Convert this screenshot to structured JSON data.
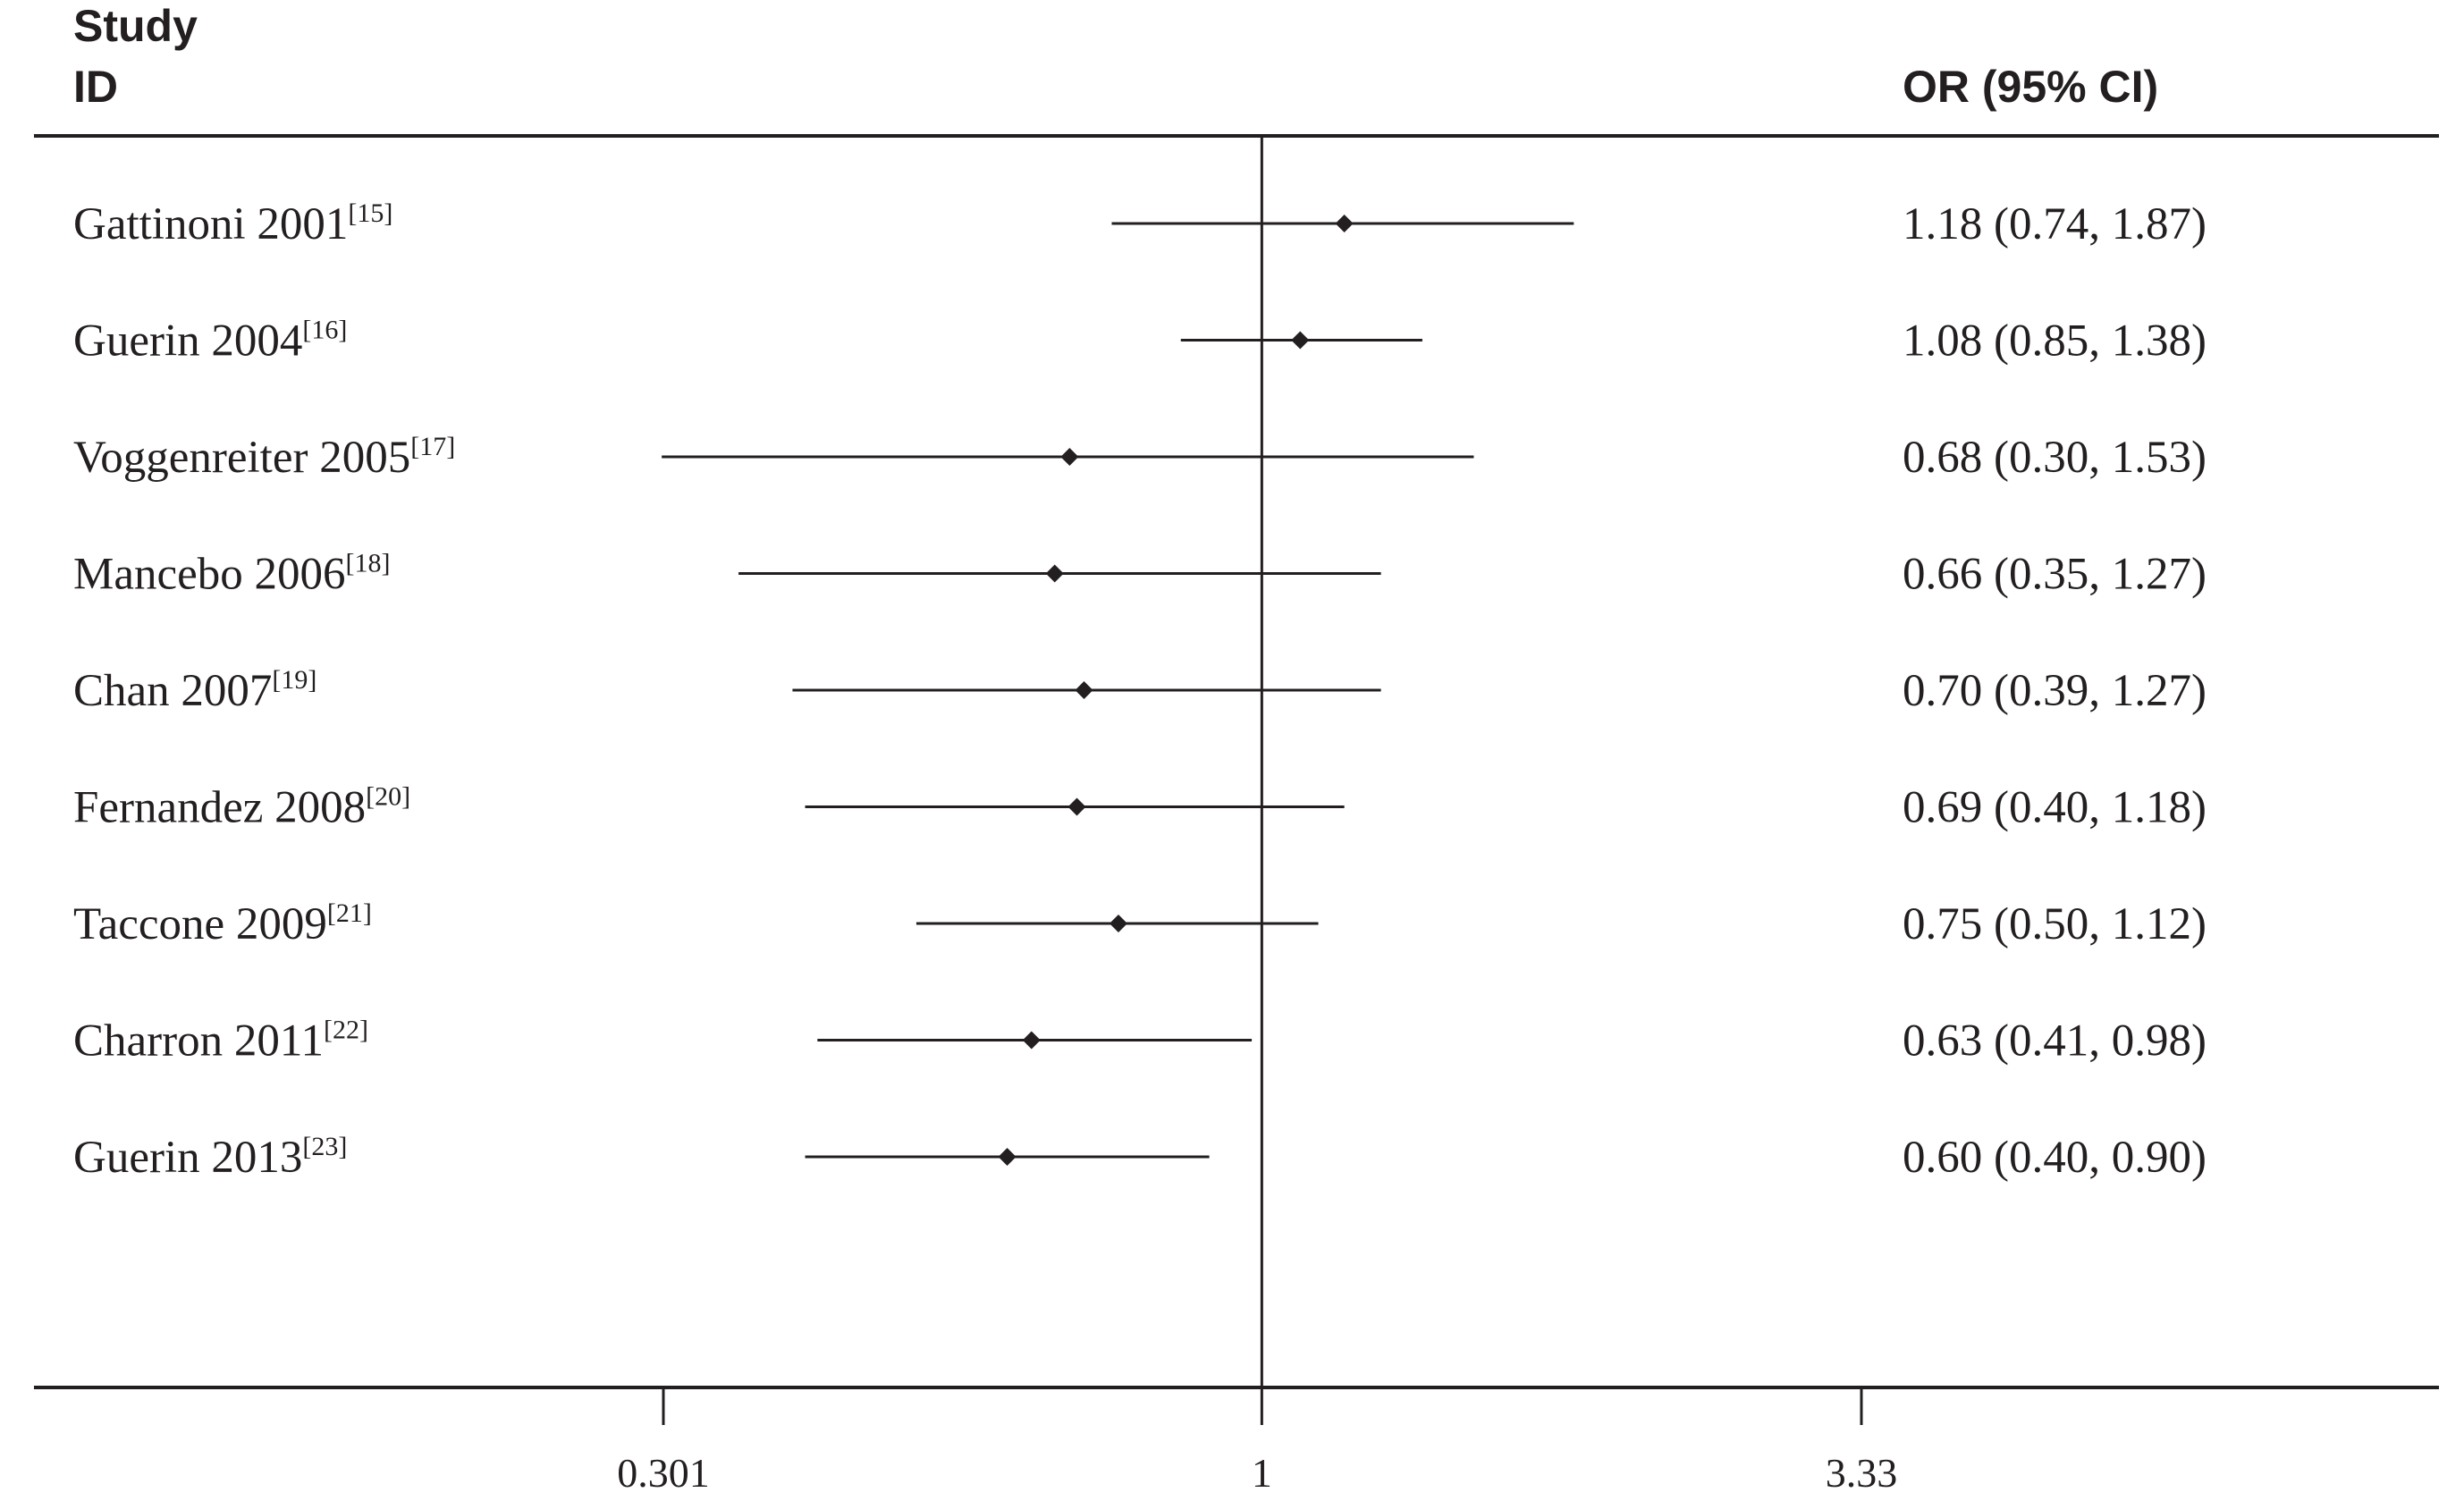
{
  "chart_data": {
    "type": "forest",
    "headers": {
      "study_line1": "Study",
      "study_line2": "ID",
      "effect": "OR (95% CI)"
    },
    "x_scale": "log",
    "xlim": [
      0.301,
      3.33
    ],
    "x_ticks": [
      {
        "value": 0.301,
        "label": "0.301"
      },
      {
        "value": 1,
        "label": "1"
      },
      {
        "value": 3.33,
        "label": "3.33"
      }
    ],
    "reference_line": 1,
    "studies": [
      {
        "name": "Gattinoni 2001",
        "ref": "[15]",
        "or": 1.18,
        "lower": 0.74,
        "upper": 1.87,
        "text": "1.18 (0.74, 1.87)"
      },
      {
        "name": "Guerin 2004",
        "ref": "[16]",
        "or": 1.08,
        "lower": 0.85,
        "upper": 1.38,
        "text": "1.08 (0.85, 1.38)"
      },
      {
        "name": "Voggenreiter 2005",
        "ref": "[17]",
        "or": 0.68,
        "lower": 0.3,
        "upper": 1.53,
        "text": "0.68 (0.30, 1.53)"
      },
      {
        "name": "Mancebo 2006",
        "ref": "[18]",
        "or": 0.66,
        "lower": 0.35,
        "upper": 1.27,
        "text": "0.66 (0.35, 1.27)"
      },
      {
        "name": "Chan 2007",
        "ref": "[19]",
        "or": 0.7,
        "lower": 0.39,
        "upper": 1.27,
        "text": "0.70 (0.39, 1.27)"
      },
      {
        "name": "Fernandez 2008",
        "ref": "[20]",
        "or": 0.69,
        "lower": 0.4,
        "upper": 1.18,
        "text": "0.69 (0.40, 1.18)"
      },
      {
        "name": "Taccone 2009",
        "ref": "[21]",
        "or": 0.75,
        "lower": 0.5,
        "upper": 1.12,
        "text": "0.75 (0.50, 1.12)"
      },
      {
        "name": "Charron 2011",
        "ref": "[22]",
        "or": 0.63,
        "lower": 0.41,
        "upper": 0.98,
        "text": "0.63 (0.41, 0.98)"
      },
      {
        "name": "Guerin 2013",
        "ref": "[23]",
        "or": 0.6,
        "lower": 0.4,
        "upper": 0.9,
        "text": "0.60 (0.40, 0.90)"
      }
    ],
    "colors": {
      "ink": "#231f20"
    }
  }
}
